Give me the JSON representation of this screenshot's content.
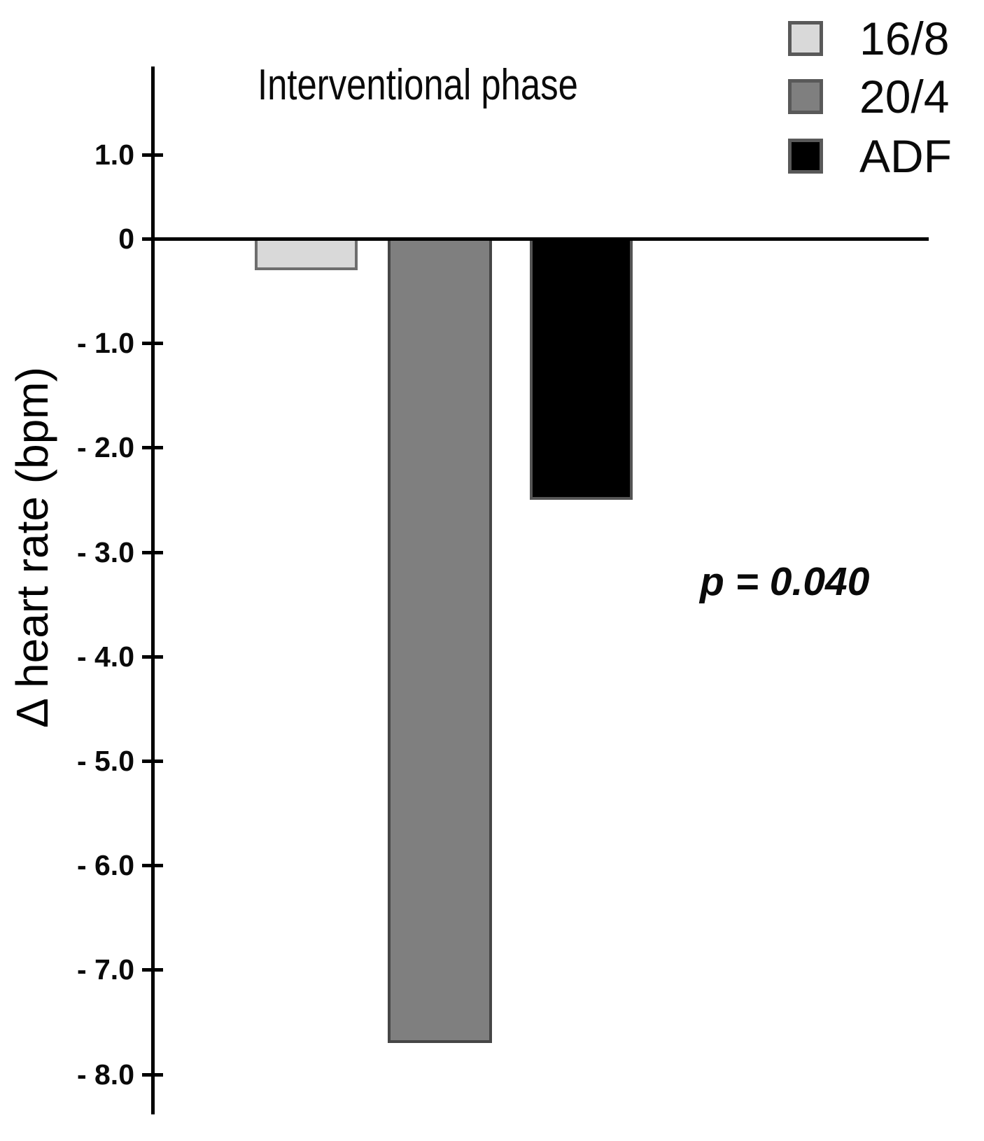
{
  "chart_data": {
    "type": "bar",
    "title": "Interventional phase",
    "ylabel": "Δ heart rate (bpm)",
    "xlabel": "",
    "categories": [
      "16/8",
      "20/4",
      "ADF"
    ],
    "values": [
      -0.3,
      -7.7,
      -2.5
    ],
    "bar_colors": [
      "#d9d9d9",
      "#7f7f7f",
      "#000000"
    ],
    "bar_border_colors": [
      "#6e6e6e",
      "#464646",
      "#555555"
    ],
    "ytick_labels": [
      "1.0",
      "0",
      "- 1.0",
      "- 2.0",
      "- 3.0",
      "- 4.0",
      "- 5.0",
      "- 6.0",
      "- 7.0",
      "- 8.0"
    ],
    "ytick_values": [
      1.0,
      0,
      -1.0,
      -2.0,
      -3.0,
      -4.0,
      -5.0,
      -6.0,
      -7.0,
      -8.0
    ],
    "ylim": [
      -8.6,
      1.7
    ],
    "grid": false,
    "legend_position": "top-right",
    "legend": [
      {
        "label": "16/8",
        "color": "#d9d9d9",
        "border": "#595959"
      },
      {
        "label": "20/4",
        "color": "#7f7f7f",
        "border": "#595959"
      },
      {
        "label": "ADF",
        "color": "#000000",
        "border": "#595959"
      }
    ],
    "annotation": "p = 0.040",
    "axis_color": "#000000",
    "baseline_at_zero": true
  }
}
